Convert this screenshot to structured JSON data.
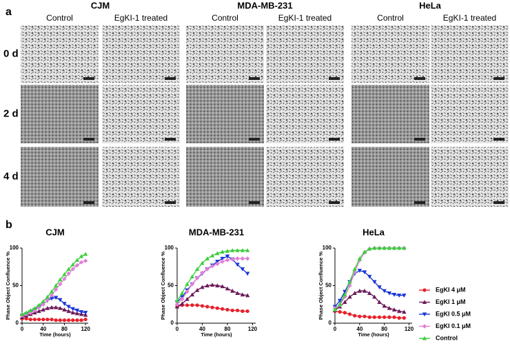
{
  "panel_a": {
    "label": "a",
    "cell_lines": [
      "CJM",
      "MDA-MB-231",
      "HeLa"
    ],
    "conditions": [
      "Control",
      "EgKI-1 treated"
    ],
    "days": [
      "0 d",
      "2 d",
      "4 d"
    ]
  },
  "panel_b_label": "b",
  "chart_data": [
    {
      "type": "line",
      "title": "CJM",
      "xlabel": "Time (hours)",
      "ylabel": "Phase Object Confluence %",
      "x": [
        0,
        8,
        16,
        24,
        32,
        40,
        48,
        56,
        64,
        72,
        80,
        88,
        96,
        104,
        112,
        120
      ],
      "xlim": [
        0,
        125
      ],
      "ylim": [
        0,
        100
      ],
      "xticks": [
        0,
        40,
        80,
        120
      ],
      "yticks": [
        0,
        50,
        100
      ],
      "series": [
        {
          "color": "#e8202a",
          "marker": "circle",
          "values": [
            6,
            6,
            5,
            5,
            5,
            5,
            5,
            5,
            4,
            4,
            4,
            4,
            4,
            4,
            4,
            5
          ]
        },
        {
          "color": "#6b1a5a",
          "marker": "triangle-up",
          "values": [
            8,
            10,
            12,
            14,
            16,
            18,
            20,
            21,
            21,
            20,
            18,
            16,
            14,
            13,
            12,
            11
          ]
        },
        {
          "color": "#1a35d8",
          "marker": "triangle-down",
          "values": [
            10,
            12,
            15,
            18,
            22,
            26,
            30,
            33,
            34,
            31,
            26,
            22,
            19,
            17,
            15,
            14
          ]
        },
        {
          "color": "#e27fd7",
          "marker": "diamond",
          "values": [
            10,
            12,
            14,
            17,
            21,
            25,
            31,
            37,
            45,
            52,
            59,
            66,
            72,
            77,
            81,
            83
          ]
        },
        {
          "color": "#3ccf3c",
          "marker": "triangle-up",
          "values": [
            12,
            14,
            17,
            20,
            24,
            29,
            35,
            42,
            50,
            58,
            65,
            72,
            78,
            84,
            89,
            92
          ]
        }
      ]
    },
    {
      "type": "line",
      "title": "MDA-MB-231",
      "xlabel": "Time (hours)",
      "ylabel": "Phase Object Confluence %",
      "x": [
        0,
        8,
        16,
        24,
        32,
        40,
        48,
        56,
        64,
        72,
        80,
        88,
        96,
        104,
        112
      ],
      "xlim": [
        0,
        125
      ],
      "ylim": [
        0,
        100
      ],
      "xticks": [
        0,
        40,
        80,
        120
      ],
      "yticks": [
        0,
        50,
        100
      ],
      "series": [
        {
          "color": "#e8202a",
          "marker": "circle",
          "values": [
            22,
            24,
            24,
            24,
            24,
            23,
            22,
            21,
            20,
            19,
            18,
            17,
            17,
            16,
            16
          ]
        },
        {
          "color": "#6b1a5a",
          "marker": "triangle-up",
          "values": [
            22,
            26,
            32,
            38,
            44,
            48,
            50,
            51,
            50,
            49,
            46,
            43,
            40,
            38,
            37
          ]
        },
        {
          "color": "#1a35d8",
          "marker": "triangle-down",
          "values": [
            28,
            35,
            44,
            52,
            60,
            66,
            72,
            77,
            82,
            86,
            89,
            85,
            78,
            72,
            66
          ]
        },
        {
          "color": "#e27fd7",
          "marker": "diamond",
          "values": [
            25,
            32,
            42,
            52,
            60,
            67,
            72,
            76,
            79,
            82,
            84,
            85,
            86,
            86,
            86
          ]
        },
        {
          "color": "#3ccf3c",
          "marker": "triangle-up",
          "values": [
            30,
            40,
            52,
            62,
            72,
            80,
            86,
            90,
            93,
            95,
            96,
            97,
            97,
            97,
            97
          ]
        }
      ]
    },
    {
      "type": "line",
      "title": "HeLa",
      "xlabel": "Time (hours)",
      "ylabel": "Phase Object Confluence %",
      "x": [
        0,
        8,
        16,
        24,
        32,
        40,
        48,
        56,
        64,
        72,
        80,
        88,
        96,
        104,
        112
      ],
      "xlim": [
        0,
        125
      ],
      "ylim": [
        0,
        100
      ],
      "xticks": [
        0,
        40,
        80,
        120
      ],
      "yticks": [
        0,
        50,
        100
      ],
      "legend": "right",
      "series": [
        {
          "name": "EgKI 4 μM",
          "color": "#e8202a",
          "marker": "circle",
          "values": [
            16,
            15,
            14,
            12,
            10,
            9,
            9,
            8,
            8,
            8,
            8,
            8,
            8,
            7,
            7
          ]
        },
        {
          "name": "EgKI 1 μM",
          "color": "#6b1a5a",
          "marker": "triangle-up",
          "values": [
            17,
            22,
            28,
            35,
            40,
            43,
            43,
            40,
            35,
            28,
            23,
            20,
            18,
            16,
            15
          ]
        },
        {
          "name": "EgKI 0.5 μM",
          "color": "#1a35d8",
          "marker": "triangle-down",
          "values": [
            22,
            30,
            42,
            55,
            66,
            70,
            68,
            62,
            55,
            48,
            43,
            40,
            38,
            37,
            37
          ]
        },
        {
          "name": "EgKI 0.1 μM",
          "color": "#e27fd7",
          "marker": "diamond",
          "values": [
            20,
            24,
            35,
            50,
            68,
            84,
            94,
            99,
            100,
            100,
            100,
            100,
            100,
            100,
            100
          ]
        },
        {
          "name": "Control",
          "color": "#3ccf3c",
          "marker": "triangle-up",
          "values": [
            18,
            25,
            38,
            55,
            72,
            86,
            95,
            99,
            100,
            100,
            100,
            100,
            100,
            100,
            100
          ]
        }
      ]
    }
  ]
}
